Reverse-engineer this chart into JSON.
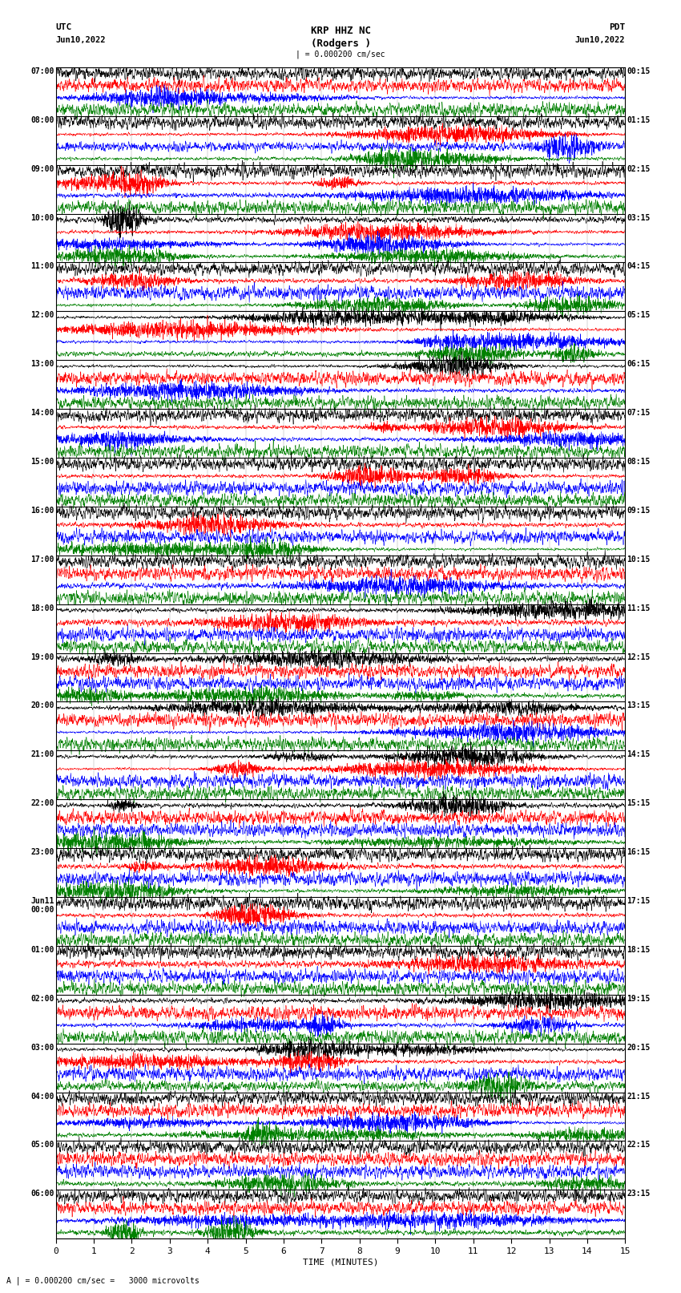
{
  "title_line1": "KRP HHZ NC",
  "title_line2": "(Rodgers )",
  "utc_label": "UTC",
  "pdt_label": "PDT",
  "date_left": "Jun10,2022",
  "date_right": "Jun10,2022",
  "scale_label": "| = 0.000200 cm/sec",
  "bottom_label": "A | = 0.000200 cm/sec =   3000 microvolts",
  "xlabel": "TIME (MINUTES)",
  "xlim": [
    0,
    15
  ],
  "xticks": [
    0,
    1,
    2,
    3,
    4,
    5,
    6,
    7,
    8,
    9,
    10,
    11,
    12,
    13,
    14,
    15
  ],
  "bg_color": "white",
  "trace_color_black": "#000000",
  "trace_color_red": "#ff0000",
  "trace_color_blue": "#0000ff",
  "trace_color_green": "#008000",
  "left_times": [
    "07:00",
    "08:00",
    "09:00",
    "10:00",
    "11:00",
    "12:00",
    "13:00",
    "14:00",
    "15:00",
    "16:00",
    "17:00",
    "18:00",
    "19:00",
    "20:00",
    "21:00",
    "22:00",
    "23:00",
    "Jun11\n00:00",
    "01:00",
    "02:00",
    "03:00",
    "04:00",
    "05:00",
    "06:00"
  ],
  "right_times_pdt": [
    "00:15",
    "01:15",
    "02:15",
    "03:15",
    "04:15",
    "05:15",
    "06:15",
    "07:15",
    "08:15",
    "09:15",
    "10:15",
    "11:15",
    "12:15",
    "13:15",
    "14:15",
    "15:15",
    "16:15",
    "17:15",
    "18:15",
    "19:15",
    "20:15",
    "21:15",
    "22:15",
    "23:15"
  ],
  "num_hours": 24,
  "traces_per_hour": 4,
  "n_samples": 3000,
  "figsize": [
    8.5,
    16.13
  ],
  "dpi": 100
}
